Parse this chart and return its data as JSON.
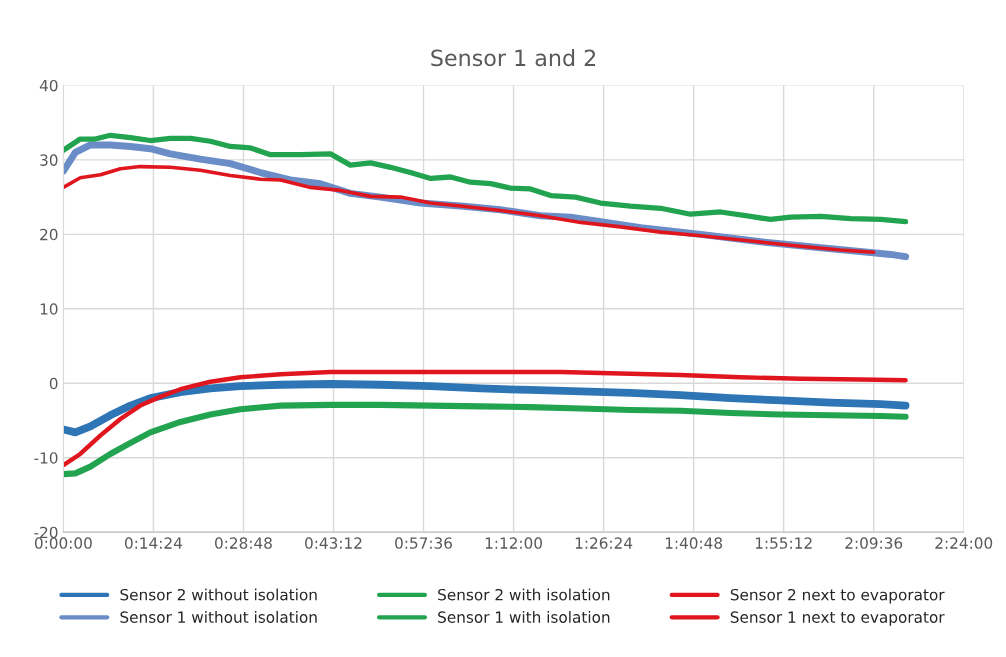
{
  "chart_data": {
    "type": "line",
    "title": "Sensor 1 and 2",
    "xlim": [
      0,
      2.4
    ],
    "xticks": [
      {
        "value": 0,
        "label": "0:00:00"
      },
      {
        "value": 0.24,
        "label": "0:14:24"
      },
      {
        "value": 0.48,
        "label": "0:28:48"
      },
      {
        "value": 0.72,
        "label": "0:43:12"
      },
      {
        "value": 0.96,
        "label": "0:57:36"
      },
      {
        "value": 1.2,
        "label": "1:12:00"
      },
      {
        "value": 1.44,
        "label": "1:26:24"
      },
      {
        "value": 1.68,
        "label": "1:40:48"
      },
      {
        "value": 1.92,
        "label": "1:55:12"
      },
      {
        "value": 2.16,
        "label": "2:09:36"
      },
      {
        "value": 2.4,
        "label": "2:24:00"
      }
    ],
    "ylim": [
      -20,
      40
    ],
    "yticks": [
      -20,
      -10,
      0,
      10,
      20,
      30,
      40
    ],
    "grid": true,
    "legend": "bottom",
    "line_style": "solid",
    "marker": "none",
    "series": [
      {
        "name": "Sensor 2 without isolation",
        "color": "#2e75b6",
        "x": [
          0,
          0.032,
          0.072,
          0.125,
          0.179,
          0.232,
          0.312,
          0.392,
          0.472,
          0.579,
          0.712,
          0.845,
          0.979,
          1.112,
          1.245,
          1.379,
          1.512,
          1.645,
          1.779,
          1.912,
          2.045,
          2.179,
          2.245
        ],
        "values": [
          -6.2,
          -6.6,
          -5.8,
          -4.3,
          -3.0,
          -2.0,
          -1.2,
          -0.7,
          -0.4,
          -0.2,
          -0.1,
          -0.2,
          -0.4,
          -0.7,
          -0.9,
          -1.1,
          -1.3,
          -1.6,
          -2.0,
          -2.3,
          -2.6,
          -2.8,
          -3.0
        ]
      },
      {
        "name": "Sensor 1 without isolation",
        "color": "#6a8cc7",
        "x": [
          0,
          0.032,
          0.072,
          0.125,
          0.179,
          0.232,
          0.285,
          0.365,
          0.445,
          0.525,
          0.605,
          0.685,
          0.765,
          0.845,
          0.952,
          1.059,
          1.165,
          1.272,
          1.352,
          1.432,
          1.539,
          1.699,
          1.859,
          2.019,
          2.165,
          2.205,
          2.245
        ],
        "values": [
          28.5,
          31,
          32,
          32,
          31.8,
          31.5,
          30.8,
          30.1,
          29.5,
          28.3,
          27.3,
          26.8,
          25.5,
          25.0,
          24.2,
          23.8,
          23.3,
          22.5,
          22.3,
          21.7,
          20.9,
          20.0,
          19.0,
          18.2,
          17.5,
          17.3,
          17.0
        ]
      },
      {
        "name": "Sensor 2 with isolation",
        "color": "#22a34f",
        "x": [
          0,
          0.032,
          0.072,
          0.125,
          0.179,
          0.232,
          0.312,
          0.392,
          0.472,
          0.579,
          0.712,
          0.845,
          0.979,
          1.112,
          1.245,
          1.379,
          1.512,
          1.645,
          1.779,
          1.912,
          2.045,
          2.179,
          2.245
        ],
        "values": [
          -12.2,
          -12.1,
          -11.2,
          -9.5,
          -8.0,
          -6.6,
          -5.2,
          -4.2,
          -3.5,
          -3.0,
          -2.9,
          -2.9,
          -3.0,
          -3.1,
          -3.2,
          -3.4,
          -3.6,
          -3.7,
          -4.0,
          -4.2,
          -4.3,
          -4.4,
          -4.5
        ]
      },
      {
        "name": "Sensor 1 with isolation",
        "color": "#22a34f",
        "x": [
          0,
          0.045,
          0.085,
          0.125,
          0.179,
          0.232,
          0.285,
          0.339,
          0.392,
          0.445,
          0.499,
          0.552,
          0.632,
          0.712,
          0.765,
          0.819,
          0.872,
          0.925,
          0.979,
          1.032,
          1.085,
          1.139,
          1.192,
          1.245,
          1.299,
          1.365,
          1.432,
          1.512,
          1.592,
          1.672,
          1.752,
          1.832,
          1.885,
          1.939,
          2.019,
          2.099,
          2.179,
          2.245
        ],
        "values": [
          31.3,
          32.8,
          32.8,
          33.3,
          33.0,
          32.6,
          32.9,
          32.9,
          32.5,
          31.8,
          31.6,
          30.7,
          30.7,
          30.8,
          29.3,
          29.6,
          29.0,
          28.3,
          27.5,
          27.7,
          27.0,
          26.8,
          26.2,
          26.1,
          25.2,
          25.0,
          24.2,
          23.8,
          23.5,
          22.7,
          23.0,
          22.4,
          22.0,
          22.3,
          22.4,
          22.1,
          22.0,
          21.7
        ]
      },
      {
        "name": "Sensor 2 next to evaporator",
        "color": "#e0161e",
        "x": [
          0,
          0.045,
          0.099,
          0.152,
          0.205,
          0.259,
          0.312,
          0.392,
          0.472,
          0.579,
          0.712,
          0.899,
          1.112,
          1.325,
          1.485,
          1.645,
          1.805,
          1.965,
          2.125,
          2.245
        ],
        "values": [
          -11.0,
          -9.5,
          -7.0,
          -4.8,
          -3.0,
          -1.8,
          -0.8,
          0.2,
          0.8,
          1.2,
          1.5,
          1.5,
          1.5,
          1.5,
          1.3,
          1.1,
          0.8,
          0.6,
          0.5,
          0.4
        ]
      },
      {
        "name": "Sensor 1 next to evaporator",
        "color": "#e0161e",
        "x": [
          0,
          0.045,
          0.099,
          0.152,
          0.205,
          0.285,
          0.365,
          0.445,
          0.525,
          0.579,
          0.659,
          0.739,
          0.819,
          0.899,
          0.979,
          1.059,
          1.165,
          1.272,
          1.379,
          1.485,
          1.592,
          1.699,
          1.832,
          1.965,
          2.072,
          2.16
        ],
        "values": [
          26.3,
          27.6,
          28.0,
          28.8,
          29.1,
          29.0,
          28.6,
          27.9,
          27.4,
          27.3,
          26.3,
          25.9,
          25.1,
          25.0,
          24.2,
          23.8,
          23.2,
          22.5,
          21.6,
          21.0,
          20.3,
          19.8,
          19.1,
          18.4,
          17.9,
          17.6
        ]
      }
    ]
  }
}
